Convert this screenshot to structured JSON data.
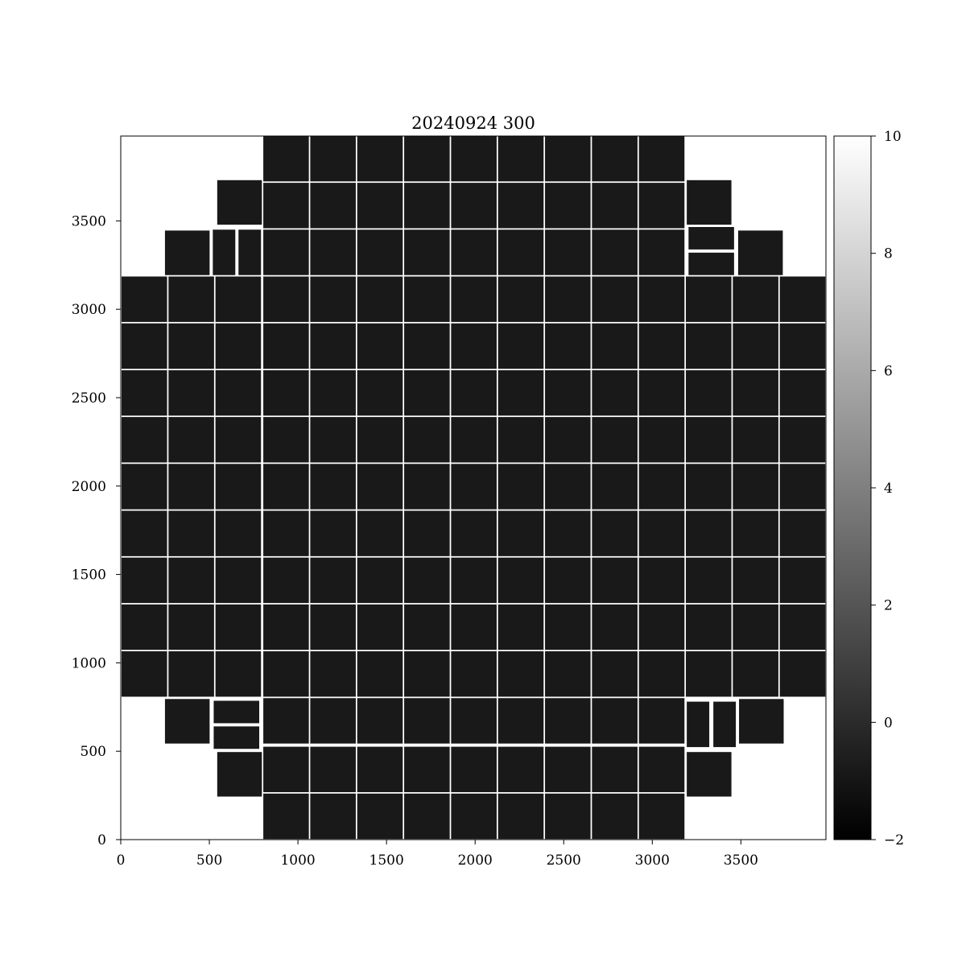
{
  "chart_data": {
    "type": "heatmap",
    "title": "20240924 300",
    "xlabel": "",
    "ylabel": "",
    "xlim": [
      0,
      3980
    ],
    "ylim": [
      0,
      3980
    ],
    "xticks": [
      0,
      500,
      1000,
      1500,
      2000,
      2500,
      3000,
      3500
    ],
    "yticks": [
      0,
      500,
      1000,
      1500,
      2000,
      2500,
      3000,
      3500
    ],
    "grid": false,
    "colormap": "gray",
    "background_color": "#ffffff",
    "cell_color": "#191919",
    "colorbar": {
      "range": [
        -2,
        10
      ],
      "ticks": [
        -2,
        0,
        2,
        4,
        6,
        8,
        10
      ],
      "tick_labels": [
        "−2",
        "0",
        "2",
        "4",
        "6",
        "8",
        "10"
      ],
      "colors": [
        "#000000",
        "#ffffff"
      ]
    },
    "cell_value": 0,
    "detectors": {
      "grid_columns_x0": [
        0,
        265,
        530,
        800,
        1065,
        1330,
        1595,
        1860,
        2125,
        2390,
        2655,
        2920,
        3185,
        3450,
        3715
      ],
      "grid_rows_y0": [
        805,
        1070,
        1335,
        1600,
        1865,
        2130,
        2395,
        2660,
        2925
      ],
      "grid_cell_size": 265,
      "center_columns_x0": [
        800,
        1065,
        1330,
        1595,
        1860,
        2125,
        2390,
        2655,
        2920
      ],
      "center_top_rows_y0": [
        3190,
        3455,
        3720
      ],
      "center_bottom_rows_y0": [
        0,
        265,
        540
      ],
      "extra": [
        {
          "x": 540,
          "y": 3475,
          "w": 260,
          "h": 260
        },
        {
          "x": 245,
          "y": 3190,
          "w": 260,
          "h": 260
        },
        {
          "x": 515,
          "y": 3190,
          "w": 135,
          "h": 265
        },
        {
          "x": 660,
          "y": 3190,
          "w": 135,
          "h": 265
        },
        {
          "x": 3190,
          "y": 3475,
          "w": 260,
          "h": 260
        },
        {
          "x": 3200,
          "y": 3335,
          "w": 265,
          "h": 135
        },
        {
          "x": 3200,
          "y": 3190,
          "w": 265,
          "h": 135
        },
        {
          "x": 3480,
          "y": 3190,
          "w": 260,
          "h": 260
        },
        {
          "x": 245,
          "y": 540,
          "w": 260,
          "h": 260
        },
        {
          "x": 520,
          "y": 655,
          "w": 265,
          "h": 135
        },
        {
          "x": 520,
          "y": 510,
          "w": 265,
          "h": 135
        },
        {
          "x": 540,
          "y": 240,
          "w": 260,
          "h": 260
        },
        {
          "x": 3190,
          "y": 520,
          "w": 135,
          "h": 265
        },
        {
          "x": 3340,
          "y": 520,
          "w": 135,
          "h": 265
        },
        {
          "x": 3485,
          "y": 540,
          "w": 260,
          "h": 260
        },
        {
          "x": 3190,
          "y": 240,
          "w": 260,
          "h": 260
        }
      ]
    }
  }
}
